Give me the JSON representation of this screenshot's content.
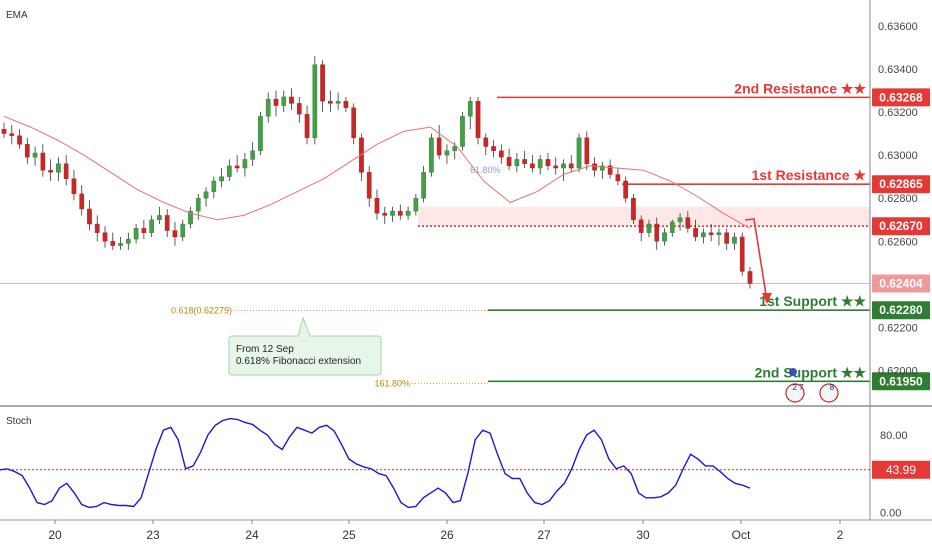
{
  "chart_data": {
    "type": "candlestick",
    "price_panel": {
      "indicator_label": "EMA",
      "ylim": [
        0.6184,
        0.6372
      ],
      "ticks": [
        "0.63600",
        "0.63400",
        "0.63200",
        "0.63000",
        "0.62800",
        "0.62600",
        "0.62200",
        "0.62000"
      ],
      "candles": [
        [
          0.6312,
          0.6315,
          0.6308,
          0.631
        ],
        [
          0.631,
          0.6314,
          0.6305,
          0.6309
        ],
        [
          0.6309,
          0.6312,
          0.6303,
          0.6305
        ],
        [
          0.6305,
          0.6308,
          0.6296,
          0.6299
        ],
        [
          0.6299,
          0.6304,
          0.6295,
          0.6301
        ],
        [
          0.6301,
          0.6305,
          0.629,
          0.6293
        ],
        [
          0.6293,
          0.6298,
          0.6288,
          0.6292
        ],
        [
          0.6292,
          0.6299,
          0.6288,
          0.6296
        ],
        [
          0.6296,
          0.63,
          0.6286,
          0.6289
        ],
        [
          0.6289,
          0.6293,
          0.6279,
          0.6282
        ],
        [
          0.6282,
          0.6286,
          0.6272,
          0.6275
        ],
        [
          0.6275,
          0.6279,
          0.6265,
          0.6268
        ],
        [
          0.6268,
          0.6272,
          0.626,
          0.6264
        ],
        [
          0.6264,
          0.6267,
          0.6257,
          0.626
        ],
        [
          0.626,
          0.6264,
          0.6256,
          0.6258
        ],
        [
          0.6258,
          0.6262,
          0.6256,
          0.6259
        ],
        [
          0.6259,
          0.6264,
          0.6256,
          0.6261
        ],
        [
          0.6261,
          0.6268,
          0.6259,
          0.6266
        ],
        [
          0.6266,
          0.627,
          0.6261,
          0.6264
        ],
        [
          0.6264,
          0.6272,
          0.6262,
          0.627
        ],
        [
          0.627,
          0.6276,
          0.6268,
          0.6272
        ],
        [
          0.6272,
          0.6275,
          0.6262,
          0.6265
        ],
        [
          0.6265,
          0.6269,
          0.6258,
          0.6262
        ],
        [
          0.6262,
          0.627,
          0.626,
          0.6268
        ],
        [
          0.6268,
          0.6276,
          0.6266,
          0.6274
        ],
        [
          0.6274,
          0.6282,
          0.627,
          0.628
        ],
        [
          0.628,
          0.6285,
          0.6276,
          0.6283
        ],
        [
          0.6283,
          0.629,
          0.628,
          0.6288
        ],
        [
          0.6288,
          0.6294,
          0.6285,
          0.629
        ],
        [
          0.629,
          0.6298,
          0.6288,
          0.6295
        ],
        [
          0.6295,
          0.63,
          0.6292,
          0.6294
        ],
        [
          0.6294,
          0.6301,
          0.629,
          0.6298
        ],
        [
          0.6298,
          0.6306,
          0.6295,
          0.6302
        ],
        [
          0.6302,
          0.632,
          0.63,
          0.6318
        ],
        [
          0.6318,
          0.6329,
          0.6315,
          0.6326
        ],
        [
          0.6326,
          0.633,
          0.6318,
          0.6323
        ],
        [
          0.6323,
          0.633,
          0.632,
          0.6327
        ],
        [
          0.6327,
          0.6331,
          0.6321,
          0.6324
        ],
        [
          0.6324,
          0.6327,
          0.6315,
          0.6319
        ],
        [
          0.6319,
          0.6323,
          0.6305,
          0.6308
        ],
        [
          0.6308,
          0.6346,
          0.6305,
          0.6342
        ],
        [
          0.6342,
          0.6344,
          0.632,
          0.6325
        ],
        [
          0.6325,
          0.633,
          0.632,
          0.6324
        ],
        [
          0.6324,
          0.6329,
          0.6321,
          0.6325
        ],
        [
          0.6325,
          0.6327,
          0.632,
          0.6322
        ],
        [
          0.6322,
          0.6324,
          0.6305,
          0.6308
        ],
        [
          0.6308,
          0.631,
          0.6288,
          0.6292
        ],
        [
          0.6292,
          0.6295,
          0.6276,
          0.628
        ],
        [
          0.628,
          0.6284,
          0.627,
          0.6273
        ],
        [
          0.6273,
          0.6276,
          0.6268,
          0.6272
        ],
        [
          0.6272,
          0.6276,
          0.6269,
          0.6274
        ],
        [
          0.6274,
          0.6277,
          0.627,
          0.6272
        ],
        [
          0.6272,
          0.6276,
          0.627,
          0.6274
        ],
        [
          0.6274,
          0.6282,
          0.6272,
          0.628
        ],
        [
          0.628,
          0.6295,
          0.6278,
          0.6292
        ],
        [
          0.6292,
          0.631,
          0.629,
          0.6308
        ],
        [
          0.6308,
          0.6314,
          0.6298,
          0.63
        ],
        [
          0.63,
          0.6305,
          0.6296,
          0.6302
        ],
        [
          0.6302,
          0.6306,
          0.6298,
          0.6304
        ],
        [
          0.6304,
          0.632,
          0.6302,
          0.6318
        ],
        [
          0.6318,
          0.6327,
          0.6312,
          0.6325
        ],
        [
          0.6325,
          0.6327,
          0.6305,
          0.6308
        ],
        [
          0.6308,
          0.631,
          0.63,
          0.6304
        ],
        [
          0.6304,
          0.6307,
          0.6299,
          0.6302
        ],
        [
          0.6302,
          0.6305,
          0.6296,
          0.6299
        ],
        [
          0.6299,
          0.6303,
          0.6293,
          0.6295
        ],
        [
          0.6295,
          0.6301,
          0.6292,
          0.6298
        ],
        [
          0.6298,
          0.6302,
          0.6294,
          0.6296
        ],
        [
          0.6296,
          0.63,
          0.6292,
          0.6294
        ],
        [
          0.6294,
          0.63,
          0.6291,
          0.6298
        ],
        [
          0.6298,
          0.6301,
          0.6293,
          0.6295
        ],
        [
          0.6295,
          0.6299,
          0.6291,
          0.6294
        ],
        [
          0.6294,
          0.6298,
          0.6288,
          0.6296
        ],
        [
          0.6296,
          0.63,
          0.6292,
          0.6294
        ],
        [
          0.6294,
          0.631,
          0.6292,
          0.6308
        ],
        [
          0.6308,
          0.6311,
          0.6293,
          0.6296
        ],
        [
          0.6296,
          0.6299,
          0.629,
          0.6293
        ],
        [
          0.6293,
          0.6297,
          0.6289,
          0.6295
        ],
        [
          0.6295,
          0.6298,
          0.6289,
          0.6291
        ],
        [
          0.6291,
          0.6294,
          0.6286,
          0.6288
        ],
        [
          0.6288,
          0.629,
          0.6278,
          0.628
        ],
        [
          0.628,
          0.6282,
          0.6268,
          0.627
        ],
        [
          0.627,
          0.6272,
          0.626,
          0.6264
        ],
        [
          0.6264,
          0.627,
          0.6262,
          0.6268
        ],
        [
          0.6268,
          0.6271,
          0.6256,
          0.626
        ],
        [
          0.626,
          0.6266,
          0.6258,
          0.6264
        ],
        [
          0.6264,
          0.627,
          0.6262,
          0.6269
        ],
        [
          0.6269,
          0.6273,
          0.6265,
          0.6271
        ],
        [
          0.6271,
          0.6274,
          0.6264,
          0.6266
        ],
        [
          0.6266,
          0.627,
          0.626,
          0.6262
        ],
        [
          0.6262,
          0.6266,
          0.6259,
          0.6264
        ],
        [
          0.6264,
          0.6268,
          0.626,
          0.6263
        ],
        [
          0.6263,
          0.6266,
          0.6258,
          0.6264
        ],
        [
          0.6264,
          0.6266,
          0.6256,
          0.6259
        ],
        [
          0.6259,
          0.6264,
          0.6256,
          0.6262
        ],
        [
          0.6262,
          0.6264,
          0.6244,
          0.6246
        ],
        [
          0.6246,
          0.6248,
          0.6238,
          0.62404
        ]
      ],
      "ema": [
        0.6318,
        0.6313,
        0.6307,
        0.63,
        0.6292,
        0.6284,
        0.6278,
        0.6273,
        0.627,
        0.6272,
        0.6277,
        0.6283,
        0.6289,
        0.6297,
        0.6305,
        0.6311,
        0.6313,
        0.6304,
        0.6288,
        0.6278,
        0.6283,
        0.6291,
        0.6295,
        0.6294,
        0.6293,
        0.6288,
        0.6281,
        0.6273,
        0.6266
      ],
      "levels": [
        {
          "label": "2nd Resistance ★★",
          "value": "0.63268",
          "price": 0.63268,
          "color": "#e53935",
          "kind": "resistance"
        },
        {
          "label": "1st Resistance ★",
          "value": "0.62865",
          "price": 0.62865,
          "color": "#e53935",
          "kind": "resistance"
        },
        {
          "label": "",
          "value": "0.62670",
          "price": 0.6267,
          "color": "#e53935",
          "kind": "pivot"
        },
        {
          "label": "",
          "value": "0.62404",
          "price": 0.62404,
          "color": "#ef9a9a",
          "kind": "last"
        },
        {
          "label": "1st Support ★★",
          "value": "0.62280",
          "price": 0.6228,
          "color": "#2e7d32",
          "kind": "support"
        },
        {
          "label": "2nd Support ★★",
          "value": "0.61950",
          "price": 0.6195,
          "color": "#2e7d32",
          "kind": "support"
        }
      ],
      "fib_labels": [
        {
          "text": "61.80%",
          "price": 0.62932
        },
        {
          "text": "0.618(0.62279)",
          "price": 0.62279
        },
        {
          "text": "161.80%",
          "price": 0.6194
        }
      ],
      "callout": [
        "From 12 Sep",
        "0.618% Fibonacci extension"
      ],
      "event_badges": [
        "2 7",
        "8"
      ]
    },
    "stoch_panel": {
      "label": "Stoch",
      "ylim": [
        -8,
        110
      ],
      "ticks": [
        "80.00",
        "0.00"
      ],
      "level": {
        "value": "43.99",
        "y": 43.99
      },
      "series": [
        44,
        45,
        42,
        38,
        25,
        10,
        8,
        12,
        25,
        30,
        20,
        8,
        5,
        6,
        10,
        8,
        7,
        7,
        6,
        15,
        40,
        65,
        85,
        88,
        75,
        45,
        48,
        62,
        80,
        90,
        95,
        97,
        96,
        93,
        91,
        85,
        80,
        70,
        65,
        78,
        88,
        85,
        82,
        88,
        90,
        84,
        70,
        55,
        50,
        47,
        45,
        40,
        38,
        25,
        10,
        5,
        6,
        15,
        20,
        25,
        20,
        10,
        12,
        40,
        75,
        85,
        82,
        60,
        40,
        35,
        35,
        20,
        10,
        8,
        12,
        22,
        30,
        45,
        65,
        80,
        85,
        75,
        55,
        45,
        48,
        40,
        20,
        15,
        15,
        16,
        20,
        28,
        45,
        60,
        55,
        48,
        48,
        42,
        35,
        30,
        28,
        25
      ]
    },
    "x_ticks": [
      "20",
      "23",
      "24",
      "25",
      "26",
      "27",
      "30",
      "Oct",
      "2"
    ]
  }
}
